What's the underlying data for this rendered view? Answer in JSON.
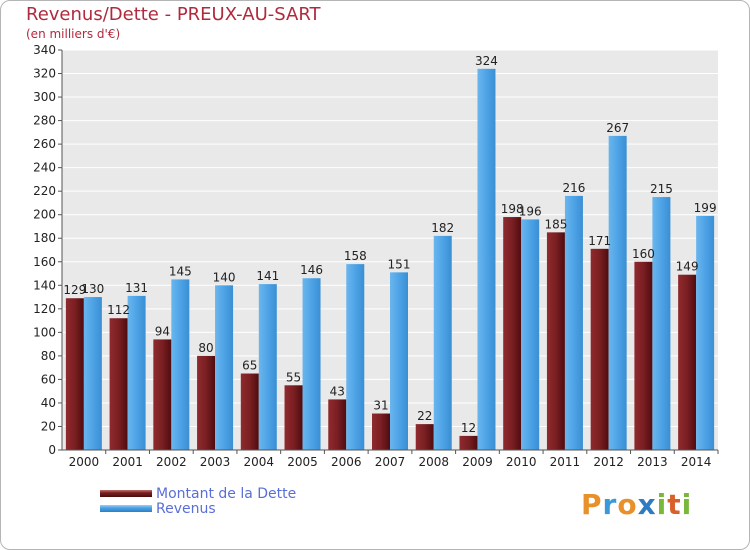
{
  "title": "Revenus/Dette - PREUX-AU-SART",
  "subtitle": "(en milliers d'€)",
  "logo": {
    "text": "Proxiti",
    "colors": [
      "#e8902a",
      "#3a9ad9",
      "#e8902a",
      "#2e7bc4",
      "#7ab83c",
      "#d9602a",
      "#7ab83c"
    ]
  },
  "colors": {
    "dette": "#7a1f22",
    "revenus": "#4ea3e6",
    "title": "#b02a3e",
    "legend_text": "#5a6ed8"
  },
  "legend": {
    "items": [
      {
        "label": "Montant de la Dette",
        "color": "#7a1f22"
      },
      {
        "label": "Revenus",
        "color": "#4ea3e6"
      }
    ]
  },
  "chart_data": {
    "type": "bar",
    "categories": [
      "2000",
      "2001",
      "2002",
      "2003",
      "2004",
      "2005",
      "2006",
      "2007",
      "2008",
      "2009",
      "2010",
      "2011",
      "2012",
      "2013",
      "2014"
    ],
    "series": [
      {
        "name": "Montant de la Dette",
        "values": [
          129,
          112,
          94,
          80,
          65,
          55,
          43,
          31,
          22,
          12,
          198,
          185,
          171,
          160,
          149
        ]
      },
      {
        "name": "Revenus",
        "values": [
          130,
          131,
          145,
          140,
          141,
          146,
          158,
          151,
          182,
          324,
          196,
          216,
          267,
          215,
          199
        ]
      }
    ],
    "yticks": [
      0,
      20,
      40,
      60,
      80,
      100,
      120,
      140,
      160,
      180,
      200,
      220,
      240,
      260,
      280,
      300,
      320,
      340
    ],
    "ylim": [
      0,
      340
    ],
    "grid": true
  }
}
